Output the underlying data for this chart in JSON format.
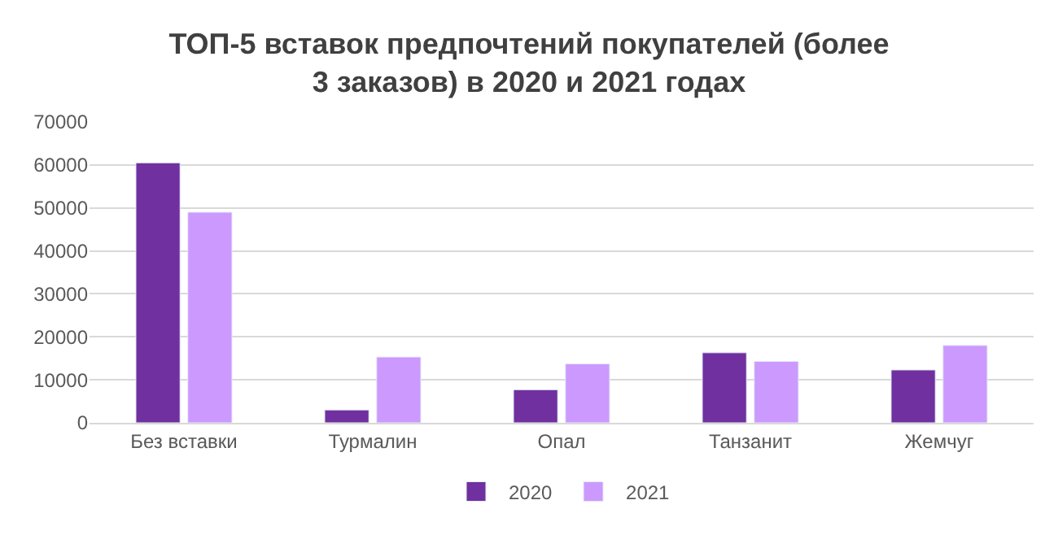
{
  "chart_data": {
    "type": "bar",
    "title": "ТОП-5 вставок предпочтений покупателей (более 3 заказов) в 2020 и 2021 годах",
    "categories": [
      "Без вставки",
      "Турмалин",
      "Опал",
      "Танзанит",
      "Жемчуг"
    ],
    "series": [
      {
        "name": "2020",
        "color": "#7030a0",
        "values": [
          60500,
          3000,
          7700,
          16300,
          12300
        ]
      },
      {
        "name": "2021",
        "color": "#cc99ff",
        "values": [
          49000,
          15300,
          13700,
          14300,
          18000
        ]
      }
    ],
    "ylim": [
      0,
      70000
    ],
    "yticks": [
      0,
      10000,
      20000,
      30000,
      40000,
      50000,
      60000,
      70000
    ],
    "grid": "y",
    "legend": "bottom"
  }
}
